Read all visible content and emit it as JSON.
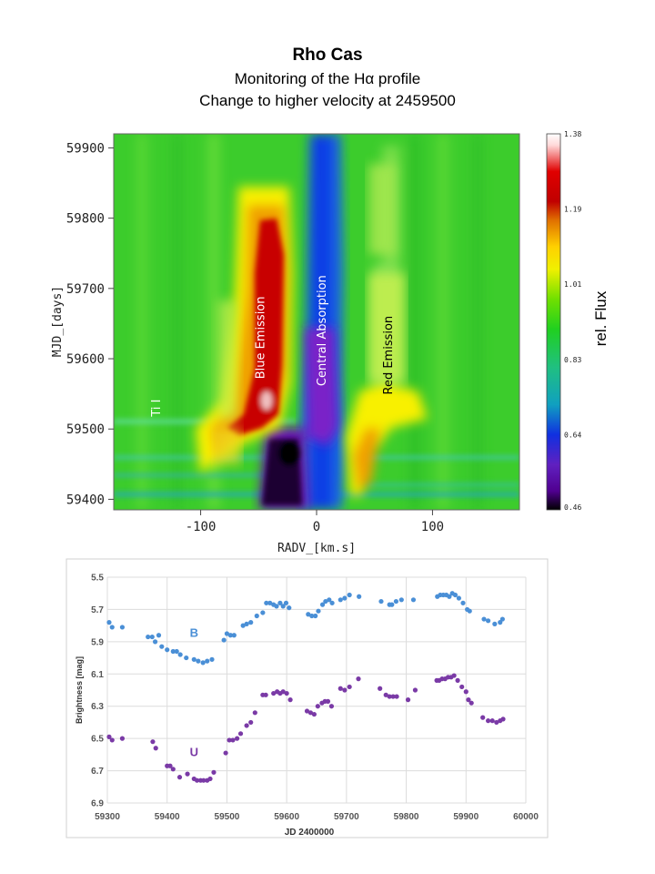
{
  "title": "Rho Cas",
  "subtitle1": "Monitoring of the Hα profile",
  "subtitle2": "Change to higher velocity at 2459500",
  "chart_data": [
    {
      "type": "heatmap",
      "title": "Monitoring of the Hα profile",
      "xlabel": "RADV_[km.s]",
      "ylabel": "MJD_[days]",
      "xlim": [
        -175,
        175
      ],
      "ylim": [
        59385,
        59920
      ],
      "xticks": [
        {
          "value": -100,
          "label": "-100"
        },
        {
          "value": 0,
          "label": "0"
        },
        {
          "value": 100,
          "label": "100"
        }
      ],
      "yticks": [
        {
          "value": 59400,
          "label": "59400"
        },
        {
          "value": 59500,
          "label": "59500"
        },
        {
          "value": 59600,
          "label": "59600"
        },
        {
          "value": 59700,
          "label": "59700"
        },
        {
          "value": 59800,
          "label": "59800"
        },
        {
          "value": 59900,
          "label": "59900"
        }
      ],
      "colorbar": {
        "label": "rel. Flux",
        "range": [
          0.46,
          1.38
        ],
        "ticks": [
          "1.38",
          "1.19",
          "1.01",
          "0.83",
          "0.64",
          "0.46"
        ]
      },
      "annotations": [
        {
          "text": "Ti I",
          "x": -135,
          "y": 59530,
          "color": "#ffffff"
        },
        {
          "text": "Blue Emission",
          "x": -45,
          "y": 59630,
          "color": "#ffffff"
        },
        {
          "text": "Central Absorption",
          "x": 8,
          "y": 59640,
          "color": "#ffffff"
        },
        {
          "text": "Red Emission",
          "x": 65,
          "y": 59605,
          "color": "#000000"
        }
      ],
      "features": [
        {
          "name": "blue-emission",
          "x_center": -45,
          "mjd_start": 59520,
          "mjd_end": 59800,
          "peak_flux": 1.38
        },
        {
          "name": "central-absorption",
          "x_center": 5,
          "mjd_start": 59385,
          "mjd_end": 59920,
          "min_flux": 0.46
        },
        {
          "name": "red-emission",
          "x_center": 60,
          "mjd_start": 59450,
          "mjd_end": 59700,
          "peak_flux": 1.15
        }
      ]
    },
    {
      "type": "scatter",
      "xlabel": "JD 2400000",
      "ylabel": "Brightness [mag]",
      "xlim": [
        59300,
        60000
      ],
      "ylim": [
        6.9,
        5.5
      ],
      "xticks": [
        "59300",
        "59400",
        "59500",
        "59600",
        "59700",
        "59800",
        "59900",
        "60000"
      ],
      "yticks": [
        "5.5",
        "5.7",
        "5.9",
        "6.1",
        "6.3",
        "6.5",
        "6.7",
        "6.9"
      ],
      "grid": true,
      "series": [
        {
          "name": "B",
          "color": "#4a8fd6",
          "points": [
            [
              59303,
              5.78
            ],
            [
              59308,
              5.81
            ],
            [
              59325,
              5.81
            ],
            [
              59368,
              5.87
            ],
            [
              59375,
              5.87
            ],
            [
              59380,
              5.9
            ],
            [
              59386,
              5.86
            ],
            [
              59391,
              5.93
            ],
            [
              59400,
              5.95
            ],
            [
              59410,
              5.96
            ],
            [
              59416,
              5.96
            ],
            [
              59422,
              5.98
            ],
            [
              59432,
              6.0
            ],
            [
              59445,
              6.01
            ],
            [
              59452,
              6.02
            ],
            [
              59460,
              6.03
            ],
            [
              59467,
              6.02
            ],
            [
              59475,
              6.01
            ],
            [
              59495,
              5.89
            ],
            [
              59500,
              5.85
            ],
            [
              59506,
              5.86
            ],
            [
              59512,
              5.86
            ],
            [
              59527,
              5.8
            ],
            [
              59533,
              5.79
            ],
            [
              59540,
              5.78
            ],
            [
              59550,
              5.74
            ],
            [
              59560,
              5.72
            ],
            [
              59566,
              5.66
            ],
            [
              59572,
              5.66
            ],
            [
              59578,
              5.67
            ],
            [
              59583,
              5.68
            ],
            [
              59589,
              5.66
            ],
            [
              59594,
              5.68
            ],
            [
              59599,
              5.66
            ],
            [
              59604,
              5.69
            ],
            [
              59636,
              5.73
            ],
            [
              59642,
              5.74
            ],
            [
              59648,
              5.74
            ],
            [
              59653,
              5.71
            ],
            [
              59660,
              5.67
            ],
            [
              59665,
              5.65
            ],
            [
              59671,
              5.64
            ],
            [
              59676,
              5.66
            ],
            [
              59690,
              5.64
            ],
            [
              59697,
              5.63
            ],
            [
              59705,
              5.61
            ],
            [
              59721,
              5.62
            ],
            [
              59758,
              5.65
            ],
            [
              59772,
              5.67
            ],
            [
              59776,
              5.67
            ],
            [
              59783,
              5.65
            ],
            [
              59792,
              5.64
            ],
            [
              59812,
              5.64
            ],
            [
              59852,
              5.62
            ],
            [
              59857,
              5.61
            ],
            [
              59862,
              5.61
            ],
            [
              59867,
              5.61
            ],
            [
              59872,
              5.62
            ],
            [
              59877,
              5.6
            ],
            [
              59882,
              5.61
            ],
            [
              59888,
              5.63
            ],
            [
              59895,
              5.66
            ],
            [
              59902,
              5.7
            ],
            [
              59906,
              5.71
            ],
            [
              59930,
              5.76
            ],
            [
              59937,
              5.77
            ],
            [
              59948,
              5.79
            ],
            [
              59957,
              5.78
            ],
            [
              59961,
              5.76
            ]
          ]
        },
        {
          "name": "U",
          "color": "#7a3aa6",
          "points": [
            [
              59303,
              6.49
            ],
            [
              59308,
              6.51
            ],
            [
              59325,
              6.5
            ],
            [
              59376,
              6.52
            ],
            [
              59381,
              6.56
            ],
            [
              59400,
              6.67
            ],
            [
              59405,
              6.67
            ],
            [
              59410,
              6.69
            ],
            [
              59421,
              6.74
            ],
            [
              59434,
              6.72
            ],
            [
              59445,
              6.75
            ],
            [
              59450,
              6.76
            ],
            [
              59456,
              6.76
            ],
            [
              59461,
              6.76
            ],
            [
              59467,
              6.76
            ],
            [
              59472,
              6.75
            ],
            [
              59478,
              6.71
            ],
            [
              59498,
              6.59
            ],
            [
              59504,
              6.51
            ],
            [
              59510,
              6.51
            ],
            [
              59517,
              6.5
            ],
            [
              59523,
              6.47
            ],
            [
              59533,
              6.42
            ],
            [
              59540,
              6.4
            ],
            [
              59547,
              6.34
            ],
            [
              59560,
              6.23
            ],
            [
              59565,
              6.23
            ],
            [
              59578,
              6.22
            ],
            [
              59584,
              6.21
            ],
            [
              59589,
              6.22
            ],
            [
              59594,
              6.21
            ],
            [
              59600,
              6.22
            ],
            [
              59606,
              6.26
            ],
            [
              59634,
              6.33
            ],
            [
              59640,
              6.34
            ],
            [
              59646,
              6.35
            ],
            [
              59652,
              6.3
            ],
            [
              59659,
              6.28
            ],
            [
              59664,
              6.27
            ],
            [
              59669,
              6.27
            ],
            [
              59675,
              6.3
            ],
            [
              59690,
              6.19
            ],
            [
              59697,
              6.2
            ],
            [
              59705,
              6.18
            ],
            [
              59720,
              6.13
            ],
            [
              59756,
              6.19
            ],
            [
              59766,
              6.23
            ],
            [
              59772,
              6.24
            ],
            [
              59778,
              6.24
            ],
            [
              59784,
              6.24
            ],
            [
              59803,
              6.26
            ],
            [
              59815,
              6.2
            ],
            [
              59851,
              6.14
            ],
            [
              59855,
              6.14
            ],
            [
              59860,
              6.13
            ],
            [
              59865,
              6.13
            ],
            [
              59870,
              6.12
            ],
            [
              59875,
              6.12
            ],
            [
              59880,
              6.11
            ],
            [
              59886,
              6.14
            ],
            [
              59893,
              6.18
            ],
            [
              59900,
              6.21
            ],
            [
              59904,
              6.26
            ],
            [
              59909,
              6.28
            ],
            [
              59928,
              6.37
            ],
            [
              59937,
              6.39
            ],
            [
              59944,
              6.39
            ],
            [
              59951,
              6.4
            ],
            [
              59957,
              6.39
            ],
            [
              59962,
              6.38
            ]
          ]
        }
      ]
    }
  ]
}
